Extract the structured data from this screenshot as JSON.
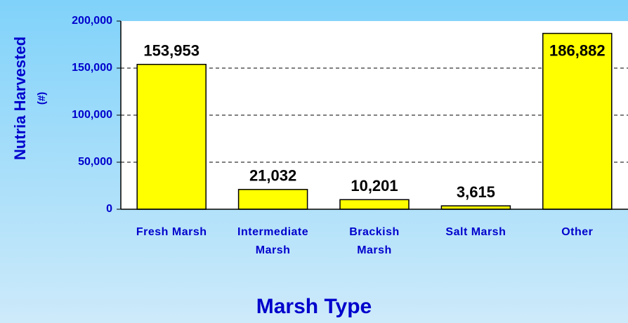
{
  "chart_data": {
    "type": "bar",
    "x_label": "Marsh Type",
    "y_label": [
      "Nutria Harvested",
      "(#)"
    ],
    "categories": [
      "Fresh Marsh",
      "Intermediate Marsh",
      "Brackish Marsh",
      "Salt Marsh",
      "Other"
    ],
    "values": [
      153953,
      21032,
      10201,
      3615,
      186882
    ],
    "value_labels": [
      "153,953",
      "21,032",
      "10,201",
      "3,615",
      "186,882"
    ],
    "color": "#ffff00",
    "ylim": [
      0,
      200000
    ],
    "yticks": [
      {
        "value": 0,
        "label": "0"
      },
      {
        "value": 50000,
        "label": "50,000"
      },
      {
        "value": 100000,
        "label": "100,000"
      },
      {
        "value": 150000,
        "label": "150,000"
      },
      {
        "value": 200000,
        "label": "200,000"
      }
    ],
    "grid": true
  }
}
